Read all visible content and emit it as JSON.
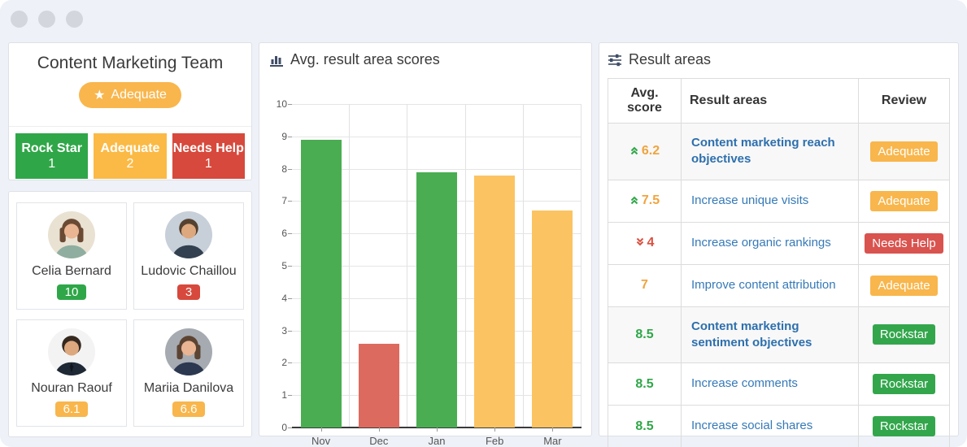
{
  "palette": {
    "green": "#2fa748",
    "orange": "#fbba45",
    "badge_orange": "#f8b64c",
    "red": "#d7493c",
    "bar_green": "#4aad52",
    "bar_orange": "#fcc362",
    "bar_red": "#dd6a5e",
    "link_blue": "#3579b8",
    "link_blue_bold": "#2d6fad",
    "background": "#eef1f8"
  },
  "team": {
    "title": "Content Marketing Team",
    "badge_icon": "★",
    "badge_label": "Adequate",
    "stats": [
      {
        "label": "Rock Star",
        "value": "1",
        "color": "green"
      },
      {
        "label": "Adequate",
        "value": "2",
        "color": "orange"
      },
      {
        "label": "Needs Help",
        "value": "1",
        "color": "red"
      }
    ]
  },
  "members": [
    {
      "name": "Celia Bernard",
      "score": "10",
      "score_color": "green",
      "avatar": {
        "bg": "#e9e2d3",
        "hair": "#6b4a33",
        "skin": "#eab592",
        "shirt": "#8fae9f",
        "long_hair": true,
        "tie": false
      }
    },
    {
      "name": "Ludovic Chaillou",
      "score": "3",
      "score_color": "red",
      "avatar": {
        "bg": "#c7cfd9",
        "hair": "#55412f",
        "skin": "#dda87e",
        "shirt": "#33404f",
        "long_hair": false,
        "tie": false
      }
    },
    {
      "name": "Nouran Raouf",
      "score": "6.1",
      "score_color": "orange",
      "avatar": {
        "bg": "#f3f3f3",
        "hair": "#35291f",
        "skin": "#dda87e",
        "shirt": "#1f2835",
        "long_hair": false,
        "tie": true
      }
    },
    {
      "name": "Mariia Danilova",
      "score": "6.6",
      "score_color": "orange",
      "avatar": {
        "bg": "#a6abb1",
        "hair": "#5c4433",
        "skin": "#eab592",
        "shirt": "#2b3850",
        "long_hair": true,
        "tie": false
      }
    }
  ],
  "chart_data": {
    "type": "bar",
    "title": "Avg. result area scores",
    "categories": [
      "Nov",
      "Dec",
      "Jan",
      "Feb",
      "Mar"
    ],
    "values": [
      8.9,
      2.6,
      7.9,
      7.8,
      6.7
    ],
    "bar_colors": [
      "#4aad52",
      "#dd6a5e",
      "#4aad52",
      "#fcc362",
      "#fcc362"
    ],
    "xlabel": "",
    "ylabel": "",
    "ylim": [
      0,
      10
    ],
    "yticks": [
      0,
      1,
      2,
      3,
      4,
      5,
      6,
      7,
      8,
      9,
      10
    ],
    "grid": true,
    "legend": false
  },
  "result_areas": {
    "title": "Result areas",
    "headers": [
      "Avg. score",
      "Result areas",
      "Review"
    ],
    "rows": [
      {
        "score": "6.2",
        "trend": "up",
        "score_color": "orange",
        "area": "Content marketing reach objectives",
        "bold": true,
        "review": "Adequate",
        "review_color": "orange"
      },
      {
        "score": "7.5",
        "trend": "up",
        "score_color": "orange",
        "area": "Increase unique visits",
        "bold": false,
        "review": "Adequate",
        "review_color": "orange"
      },
      {
        "score": "4",
        "trend": "down",
        "score_color": "red",
        "area": "Increase organic rankings",
        "bold": false,
        "review": "Needs Help",
        "review_color": "red"
      },
      {
        "score": "7",
        "trend": "none",
        "score_color": "orange",
        "area": "Improve content attribution",
        "bold": false,
        "review": "Adequate",
        "review_color": "orange"
      },
      {
        "score": "8.5",
        "trend": "none",
        "score_color": "green",
        "area": "Content marketing sentiment objectives",
        "bold": true,
        "review": "Rockstar",
        "review_color": "green"
      },
      {
        "score": "8.5",
        "trend": "none",
        "score_color": "green",
        "area": "Increase comments",
        "bold": false,
        "review": "Rockstar",
        "review_color": "green"
      },
      {
        "score": "8.5",
        "trend": "none",
        "score_color": "green",
        "area": "Increase social shares",
        "bold": false,
        "review": "Rockstar",
        "review_color": "green"
      }
    ]
  }
}
